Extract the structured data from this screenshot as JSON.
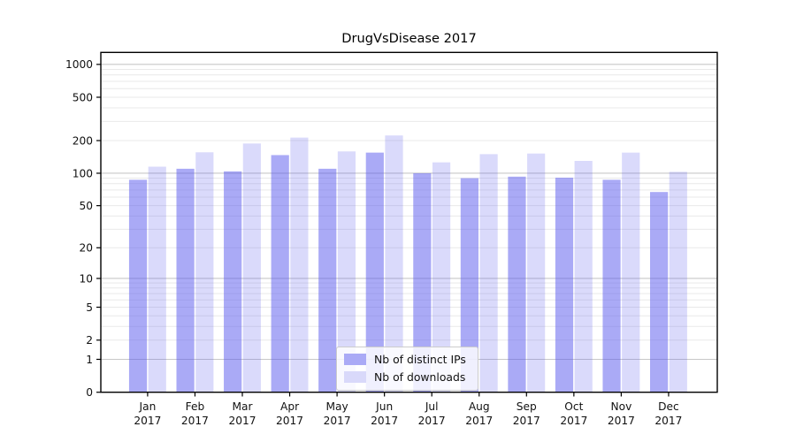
{
  "title": "DrugVsDisease 2017",
  "chart_data": {
    "type": "bar",
    "title": "DrugVsDisease 2017",
    "categories": [
      "Jan 2017",
      "Feb 2017",
      "Mar 2017",
      "Apr 2017",
      "May 2017",
      "Jun 2017",
      "Jul 2017",
      "Aug 2017",
      "Sep 2017",
      "Oct 2017",
      "Nov 2017",
      "Dec 2017"
    ],
    "series": [
      {
        "name": "Nb of distinct IPs",
        "base_color": "#5555ed",
        "opacity": 0.5,
        "blended_color": "#aaaaf6",
        "values": [
          87,
          110,
          104,
          147,
          110,
          155,
          100,
          90,
          93,
          91,
          87,
          67
        ]
      },
      {
        "name": "Nb of downloads",
        "base_color": "#5555ed",
        "opacity": 0.22,
        "blended_color": "#d9d9fa",
        "values": [
          115,
          156,
          188,
          213,
          159,
          223,
          126,
          150,
          152,
          130,
          155,
          103
        ]
      }
    ],
    "xlabel": "",
    "ylabel": "",
    "y_scale": "symlog (log10 of 1+value)",
    "y_ticks": [
      0,
      1,
      2,
      5,
      10,
      20,
      50,
      100,
      200,
      500,
      1000
    ],
    "ylim": [
      0,
      1270
    ],
    "grid": true,
    "legend_position": "lower center",
    "colors": {
      "major_gridline": "#c8c8c8",
      "minor_gridline": "#e9e9e9",
      "spine": "#000000",
      "tick_label": "#111111"
    }
  }
}
